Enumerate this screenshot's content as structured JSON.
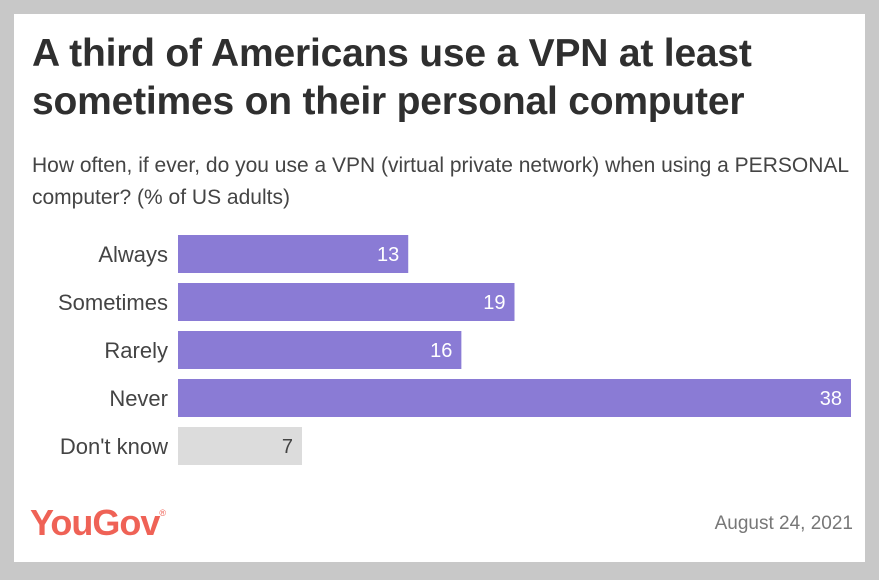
{
  "chart_data": {
    "type": "bar",
    "orientation": "horizontal",
    "title": "A third of Americans use a VPN at least sometimes on their personal computer",
    "subtitle": "How often, if ever, do you use a VPN (virtual private network) when using a PERSONAL computer? (% of US adults)",
    "categories": [
      "Always",
      "Sometimes",
      "Rarely",
      "Never",
      "Don't know"
    ],
    "values": [
      13,
      19,
      16,
      38,
      7
    ],
    "colors": [
      "#8a7bd5",
      "#8a7bd5",
      "#8a7bd5",
      "#8a7bd5",
      "#dcdcdc"
    ],
    "value_label_colors": [
      "#ffffff",
      "#ffffff",
      "#ffffff",
      "#ffffff",
      "#444444"
    ],
    "xlim": [
      0,
      38
    ],
    "xlabel": "",
    "ylabel": "",
    "grid": false
  },
  "brand": {
    "name": "YouGov",
    "mark": "®"
  },
  "footer": {
    "date": "August 24, 2021"
  }
}
